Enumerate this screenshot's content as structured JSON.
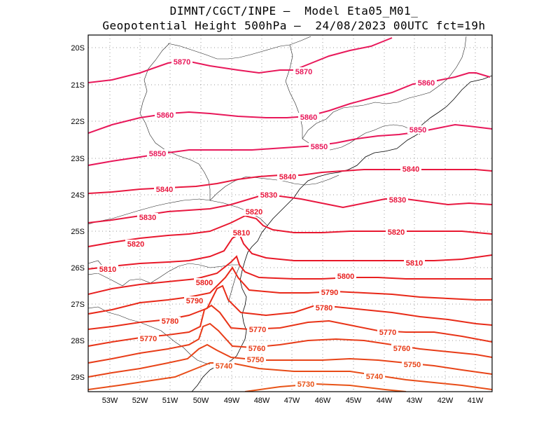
{
  "title_line1": "DIMNT/CGCT/INPE –  Model Eta05_M01_",
  "title_line2": "Geopotential Height 500hPa –  24/08/2023 00UTC fct=19h",
  "lon_labels": [
    "53W",
    "52W",
    "51W",
    "50W",
    "49W",
    "48W",
    "47W",
    "46W",
    "45W",
    "44W",
    "43W",
    "42W",
    "41W"
  ],
  "lat_labels": [
    "20S",
    "21S",
    "22S",
    "23S",
    "24S",
    "25S",
    "26S",
    "27S",
    "28S",
    "29S"
  ],
  "contour_labels": [
    {
      "text": "5870",
      "color": "#e8185a"
    },
    {
      "text": "5870",
      "color": "#e8185a"
    },
    {
      "text": "5860",
      "color": "#e8185a"
    },
    {
      "text": "5860",
      "color": "#e8185a"
    },
    {
      "text": "5860",
      "color": "#e8185a"
    },
    {
      "text": "5850",
      "color": "#e8185a"
    },
    {
      "text": "5850",
      "color": "#e8185a"
    },
    {
      "text": "5850",
      "color": "#e8185a"
    },
    {
      "text": "5840",
      "color": "#e81840"
    },
    {
      "text": "5840",
      "color": "#e81840"
    },
    {
      "text": "5840",
      "color": "#e81840"
    },
    {
      "text": "5830",
      "color": "#e81840"
    },
    {
      "text": "5830",
      "color": "#e81840"
    },
    {
      "text": "5830",
      "color": "#e81840"
    },
    {
      "text": "5820",
      "color": "#e81830"
    },
    {
      "text": "5820",
      "color": "#e81830"
    },
    {
      "text": "5820",
      "color": "#e81830"
    },
    {
      "text": "5810",
      "color": "#e81828"
    },
    {
      "text": "5810",
      "color": "#e81828"
    },
    {
      "text": "5810",
      "color": "#e81828"
    },
    {
      "text": "5800",
      "color": "#e82020"
    },
    {
      "text": "5800",
      "color": "#e82020"
    },
    {
      "text": "5790",
      "color": "#e82818"
    },
    {
      "text": "5790",
      "color": "#e82818"
    },
    {
      "text": "5780",
      "color": "#e82c18"
    },
    {
      "text": "5780",
      "color": "#e82c18"
    },
    {
      "text": "5770",
      "color": "#e83418"
    },
    {
      "text": "5770",
      "color": "#e83418"
    },
    {
      "text": "5770",
      "color": "#e83418"
    },
    {
      "text": "5760",
      "color": "#e83c18"
    },
    {
      "text": "5760",
      "color": "#e83c18"
    },
    {
      "text": "5750",
      "color": "#e84418"
    },
    {
      "text": "5750",
      "color": "#e84418"
    },
    {
      "text": "5740",
      "color": "#e84c18"
    },
    {
      "text": "5740",
      "color": "#e84c18"
    },
    {
      "text": "5730",
      "color": "#e85418"
    }
  ]
}
